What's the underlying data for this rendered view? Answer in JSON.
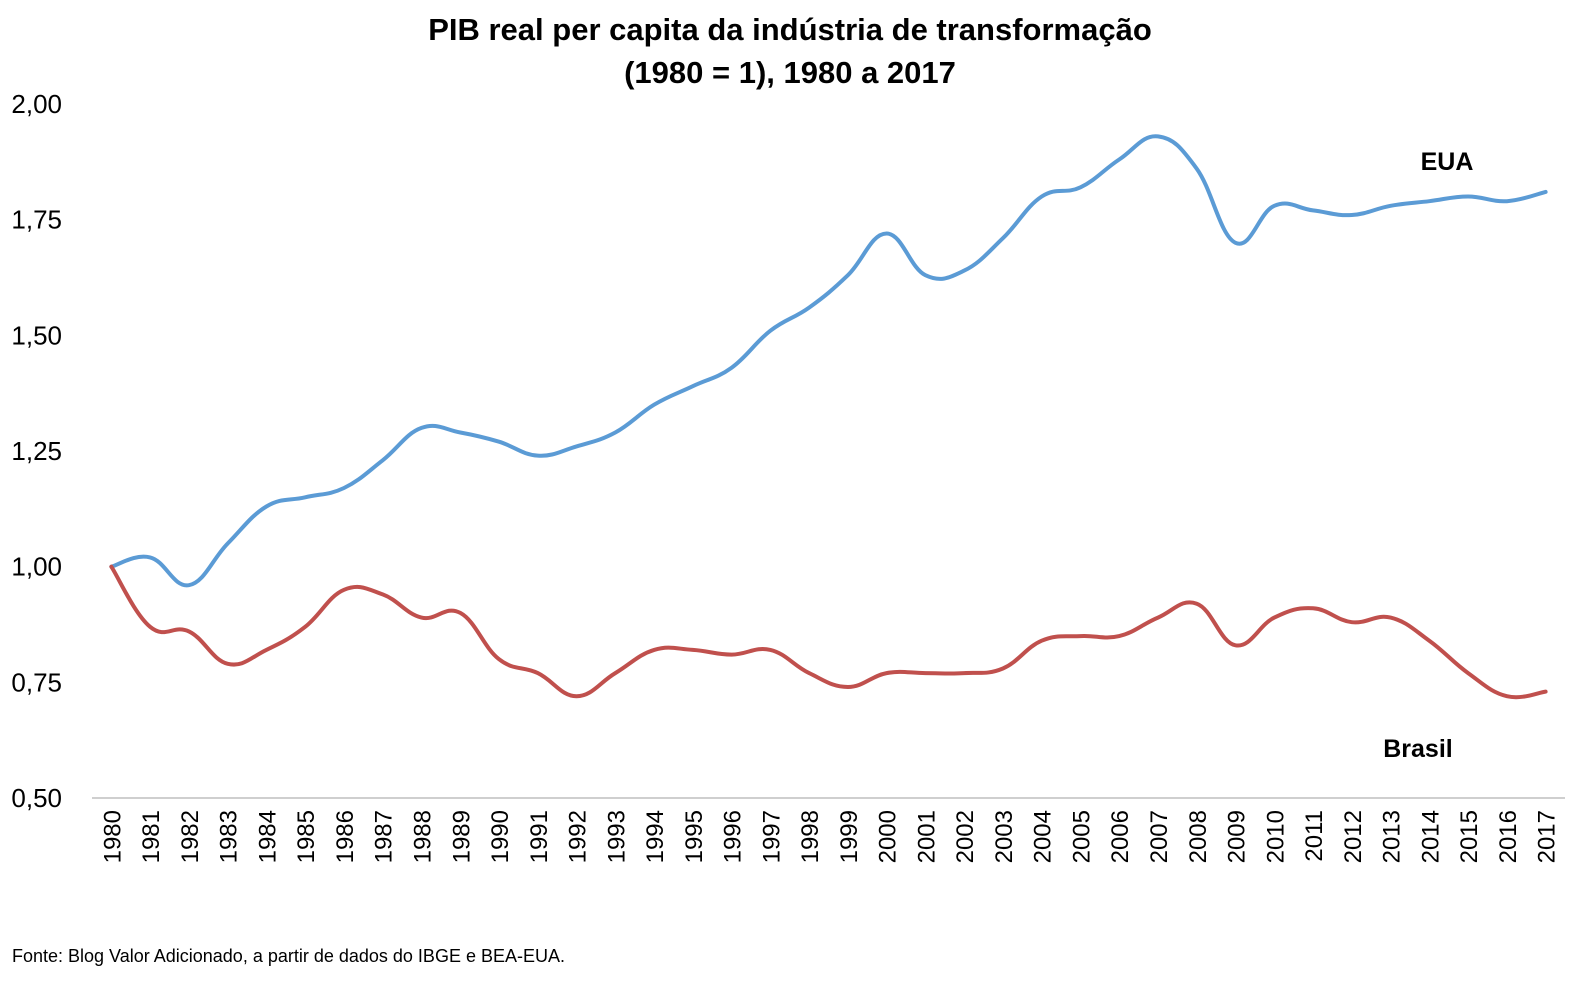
{
  "chart_data": {
    "type": "line",
    "title": "PIB real per capita da indústria de transformação",
    "subtitle": "(1980 = 1), 1980 a 2017",
    "xlabel": "",
    "ylabel": "",
    "ylim": [
      0.5,
      2.0
    ],
    "yticks": [
      "0,50",
      "0,75",
      "1,00",
      "1,25",
      "1,50",
      "1,75",
      "2,00"
    ],
    "ytick_values": [
      0.5,
      0.75,
      1.0,
      1.25,
      1.5,
      1.75,
      2.0
    ],
    "grid": false,
    "x": [
      "1980",
      "1981",
      "1982",
      "1983",
      "1984",
      "1985",
      "1986",
      "1987",
      "1988",
      "1989",
      "1990",
      "1991",
      "1992",
      "1993",
      "1994",
      "1995",
      "1996",
      "1997",
      "1998",
      "1999",
      "2000",
      "2001",
      "2002",
      "2003",
      "2004",
      "2005",
      "2006",
      "2007",
      "2008",
      "2009",
      "2010",
      "2011",
      "2012",
      "2013",
      "2014",
      "2015",
      "2016",
      "2017"
    ],
    "series": [
      {
        "name": "EUA",
        "color": "#5B9BD5",
        "values": [
          1.0,
          1.02,
          0.96,
          1.05,
          1.13,
          1.15,
          1.17,
          1.23,
          1.3,
          1.29,
          1.27,
          1.24,
          1.26,
          1.29,
          1.35,
          1.39,
          1.43,
          1.51,
          1.56,
          1.63,
          1.72,
          1.63,
          1.64,
          1.71,
          1.8,
          1.82,
          1.88,
          1.93,
          1.86,
          1.7,
          1.78,
          1.77,
          1.76,
          1.78,
          1.79,
          1.8,
          1.79,
          1.81
        ]
      },
      {
        "name": "Brasil",
        "color": "#C0504D",
        "values": [
          1.0,
          0.87,
          0.86,
          0.79,
          0.82,
          0.87,
          0.95,
          0.94,
          0.89,
          0.9,
          0.8,
          0.77,
          0.72,
          0.77,
          0.82,
          0.82,
          0.81,
          0.82,
          0.77,
          0.74,
          0.77,
          0.77,
          0.77,
          0.78,
          0.84,
          0.85,
          0.85,
          0.89,
          0.92,
          0.83,
          0.89,
          0.91,
          0.88,
          0.89,
          0.84,
          0.77,
          0.72,
          0.73
        ]
      }
    ],
    "annotations": [
      {
        "text": "EUA",
        "series": "EUA"
      },
      {
        "text": "Brasil",
        "series": "Brasil"
      }
    ]
  },
  "source_note": "Fonte: Blog Valor Adicionado, a partir de dados do IBGE e BEA-EUA."
}
